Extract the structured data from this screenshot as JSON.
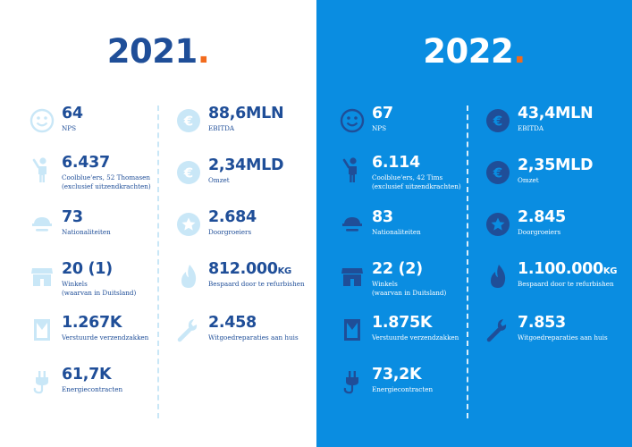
{
  "accent": "#f26b1d",
  "left": {
    "year": "2021",
    "dot": ".",
    "col1": [
      {
        "icon": "smiley-icon",
        "value": "64",
        "label1": "NPS",
        "label2": ""
      },
      {
        "icon": "person-icon",
        "value": "6.437",
        "label1": "Coolblue'ers, 52 Thomasen",
        "label2": "(exclusief uitzendkrachten)"
      },
      {
        "icon": "car-icon",
        "value": "73",
        "label1": "Nationaliteiten",
        "label2": ""
      },
      {
        "icon": "store-icon",
        "value": "20 (1)",
        "label1": "Winkels",
        "label2": "(waarvan in Duitsland)"
      },
      {
        "icon": "bag-icon",
        "value": "1.267K",
        "label1": "Verstuurde verzendzakken",
        "label2": ""
      },
      {
        "icon": "plug-icon",
        "value": "61,7K",
        "label1": "Energiecontracten",
        "label2": ""
      }
    ],
    "col2": [
      {
        "icon": "euro-icon",
        "value": "88,6MLN",
        "unit": "",
        "label1": "EBITDA"
      },
      {
        "icon": "euro-icon",
        "value": "2,34MLD",
        "unit": "",
        "label1": "Omzet"
      },
      {
        "icon": "star-icon",
        "value": "2.684",
        "unit": "",
        "label1": "Doorgroeiers"
      },
      {
        "icon": "flame-icon",
        "value": "812.000",
        "unit": "KG",
        "label1": "Bespaard door te refurbishen"
      },
      {
        "icon": "wrench-icon",
        "value": "2.458",
        "unit": "",
        "label1": "Witgoedreparaties aan huis"
      }
    ]
  },
  "right": {
    "year": "2022",
    "dot": ".",
    "col1": [
      {
        "icon": "smiley-icon",
        "value": "67",
        "label1": "NPS",
        "label2": ""
      },
      {
        "icon": "person-icon",
        "value": "6.114",
        "label1": "Coolblue'ers, 42 Tims",
        "label2": "(exclusief uitzendkrachten)"
      },
      {
        "icon": "car-icon",
        "value": "83",
        "label1": "Nationaliteiten",
        "label2": ""
      },
      {
        "icon": "store-icon",
        "value": "22 (2)",
        "label1": "Winkels",
        "label2": "(waarvan in Duitsland)"
      },
      {
        "icon": "bag-icon",
        "value": "1.875K",
        "label1": "Verstuurde verzendzakken",
        "label2": ""
      },
      {
        "icon": "plug-icon",
        "value": "73,2K",
        "label1": "Energiecontracten",
        "label2": ""
      }
    ],
    "col2": [
      {
        "icon": "euro-icon",
        "value": "43,4MLN",
        "unit": "",
        "label1": "EBITDA"
      },
      {
        "icon": "euro-icon",
        "value": "2,35MLD",
        "unit": "",
        "label1": "Omzet"
      },
      {
        "icon": "star-icon",
        "value": "2.845",
        "unit": "",
        "label1": "Doorgroeiers"
      },
      {
        "icon": "flame-icon",
        "value": "1.100.000",
        "unit": "KG",
        "label1": "Bespaard door te refurbishen"
      },
      {
        "icon": "wrench-icon",
        "value": "7.853",
        "unit": "",
        "label1": "Witgoedreparaties aan huis"
      }
    ]
  }
}
